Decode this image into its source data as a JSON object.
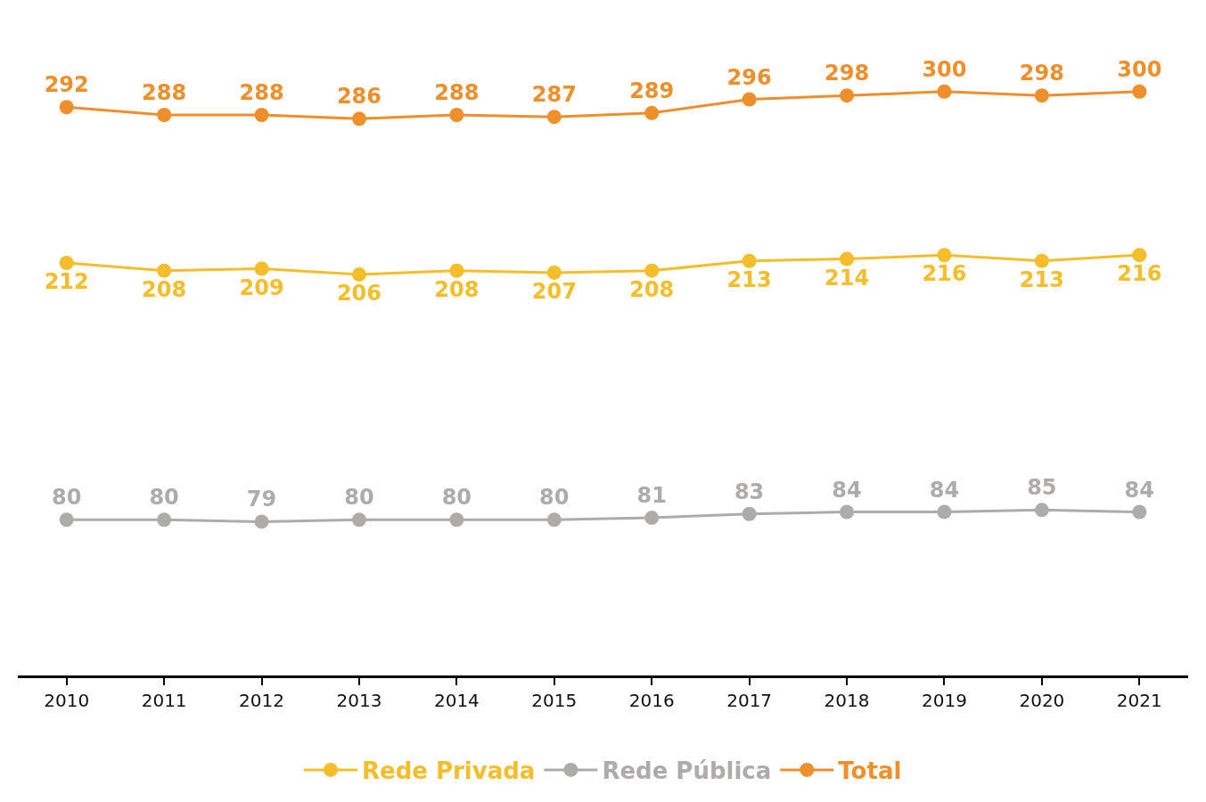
{
  "chart_data": {
    "type": "line",
    "categories": [
      "2010",
      "2011",
      "2012",
      "2013",
      "2014",
      "2015",
      "2016",
      "2017",
      "2018",
      "2019",
      "2020",
      "2021"
    ],
    "series": [
      {
        "name": "Rede Privada",
        "color": "#f4bd2a",
        "values": [
          212,
          208,
          209,
          206,
          208,
          207,
          208,
          213,
          214,
          216,
          213,
          216
        ]
      },
      {
        "name": "Rede Pública",
        "color": "#aeabab",
        "values": [
          80,
          80,
          79,
          80,
          80,
          80,
          81,
          83,
          84,
          84,
          85,
          84
        ]
      },
      {
        "name": "Total",
        "color": "#ee8f2b",
        "values": [
          292,
          288,
          288,
          286,
          288,
          287,
          289,
          296,
          298,
          300,
          298,
          300
        ]
      }
    ],
    "data_labels": true,
    "marker": "circle",
    "line_style": "solid",
    "legend": "bottom",
    "tick_labels": "x"
  }
}
